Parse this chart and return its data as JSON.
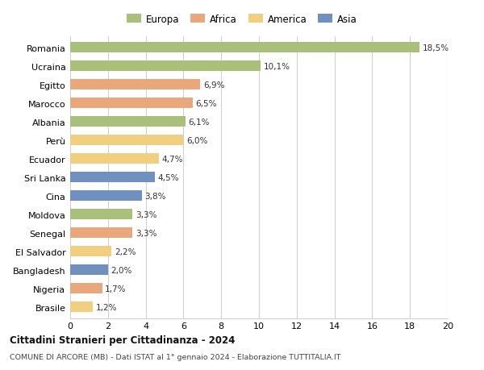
{
  "countries": [
    "Romania",
    "Ucraina",
    "Egitto",
    "Marocco",
    "Albania",
    "Perù",
    "Ecuador",
    "Sri Lanka",
    "Cina",
    "Moldova",
    "Senegal",
    "El Salvador",
    "Bangladesh",
    "Nigeria",
    "Brasile"
  ],
  "values": [
    18.5,
    10.1,
    6.9,
    6.5,
    6.1,
    6.0,
    4.7,
    4.5,
    3.8,
    3.3,
    3.3,
    2.2,
    2.0,
    1.7,
    1.2
  ],
  "labels": [
    "18,5%",
    "10,1%",
    "6,9%",
    "6,5%",
    "6,1%",
    "6,0%",
    "4,7%",
    "4,5%",
    "3,8%",
    "3,3%",
    "3,3%",
    "2,2%",
    "2,0%",
    "1,7%",
    "1,2%"
  ],
  "continents": [
    "Europa",
    "Europa",
    "Africa",
    "Africa",
    "Europa",
    "America",
    "America",
    "Asia",
    "Asia",
    "Europa",
    "Africa",
    "America",
    "Asia",
    "Africa",
    "America"
  ],
  "colors": {
    "Europa": "#a8c07a",
    "Africa": "#e8a87c",
    "America": "#f0d080",
    "Asia": "#7090c0"
  },
  "title": "Cittadini Stranieri per Cittadinanza - 2024",
  "subtitle": "COMUNE DI ARCORE (MB) - Dati ISTAT al 1° gennaio 2024 - Elaborazione TUTTITALIA.IT",
  "xlim": [
    0,
    20
  ],
  "xticks": [
    0,
    2,
    4,
    6,
    8,
    10,
    12,
    14,
    16,
    18,
    20
  ],
  "background_color": "#ffffff",
  "grid_color": "#d0d0d0"
}
